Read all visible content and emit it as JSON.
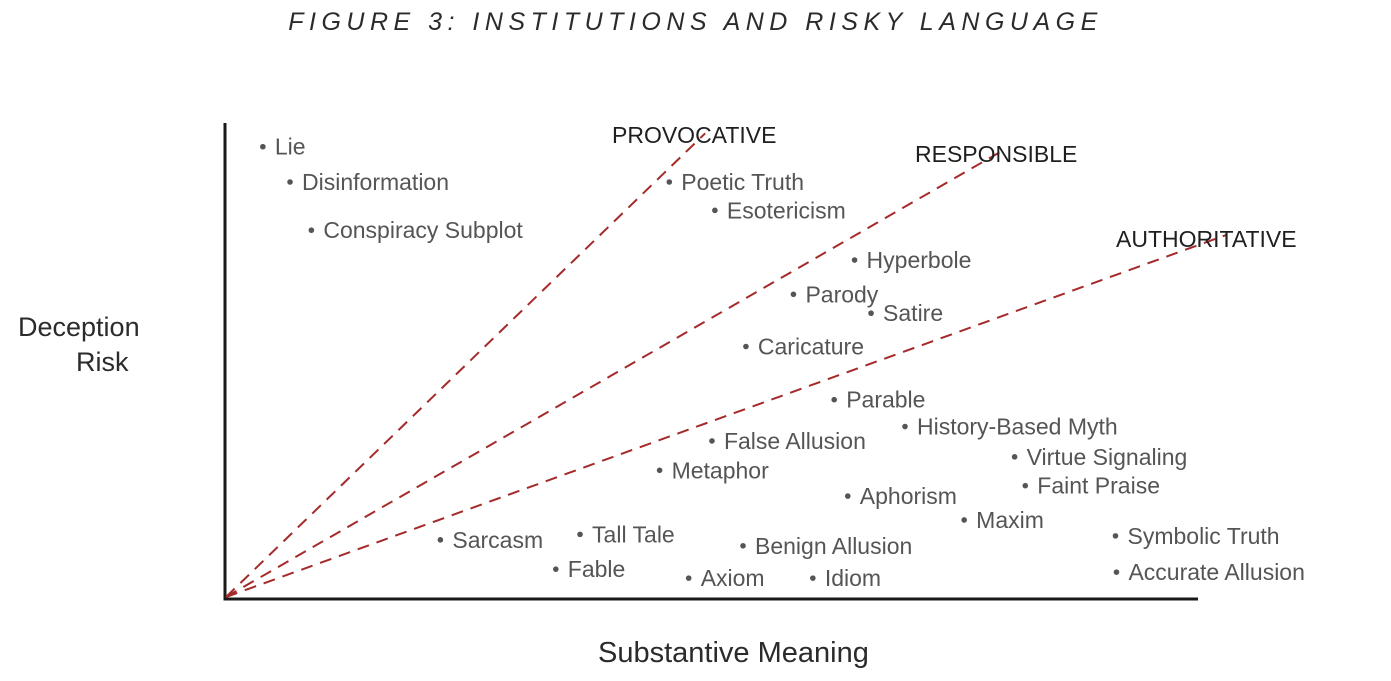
{
  "chart_data": {
    "type": "scatter",
    "title": "FIGURE 3: INSTITUTIONS AND RISKY LANGUAGE",
    "xlabel": "Substantive Meaning",
    "ylabel": [
      "Deception",
      "Risk"
    ],
    "xlim": [
      0,
      100
    ],
    "ylim": [
      0,
      100
    ],
    "grid": false,
    "line_color": "#a52a2a",
    "point_color": "#555555",
    "reference_lines": [
      {
        "name": "PROVOCATIVE",
        "from": [
          0,
          0
        ],
        "to": [
          49.4,
          93.3
        ]
      },
      {
        "name": "RESPONSIBLE",
        "from": [
          0,
          0
        ],
        "to": [
          80.4,
          90.2
        ]
      },
      {
        "name": "AUTHORITATIVE",
        "from": [
          0,
          0
        ],
        "to": [
          103.2,
          72.9
        ]
      }
    ],
    "points": [
      {
        "label": "Lie",
        "x": 3.8,
        "y": 90.6
      },
      {
        "label": "Disinformation",
        "x": 6.6,
        "y": 83.5
      },
      {
        "label": "Conspiracy Subplot",
        "x": 8.8,
        "y": 73.8
      },
      {
        "label": "Poetic Truth",
        "x": 45.7,
        "y": 83.5
      },
      {
        "label": "Esotericism",
        "x": 50.4,
        "y": 77.8
      },
      {
        "label": "Hyperbole",
        "x": 64.8,
        "y": 67.8
      },
      {
        "label": "Parody",
        "x": 58.5,
        "y": 60.9
      },
      {
        "label": "Satire",
        "x": 66.5,
        "y": 57.1
      },
      {
        "label": "Caricature",
        "x": 53.6,
        "y": 50.4
      },
      {
        "label": "Parable",
        "x": 62.7,
        "y": 39.7
      },
      {
        "label": "History-Based Myth",
        "x": 70.0,
        "y": 34.3
      },
      {
        "label": "False Allusion",
        "x": 50.1,
        "y": 31.4
      },
      {
        "label": "Virtue Signaling",
        "x": 81.3,
        "y": 28.2
      },
      {
        "label": "Metaphor",
        "x": 44.7,
        "y": 25.5
      },
      {
        "label": "Faint Praise",
        "x": 82.4,
        "y": 22.4
      },
      {
        "label": "Aphorism",
        "x": 64.1,
        "y": 20.3
      },
      {
        "label": "Maxim",
        "x": 76.1,
        "y": 15.5
      },
      {
        "label": "Sarcasm",
        "x": 22.1,
        "y": 11.5
      },
      {
        "label": "Tall Tale",
        "x": 36.5,
        "y": 12.6
      },
      {
        "label": "Benign Allusion",
        "x": 53.3,
        "y": 10.3
      },
      {
        "label": "Symbolic Truth",
        "x": 91.7,
        "y": 12.3
      },
      {
        "label": "Fable",
        "x": 34.0,
        "y": 5.6
      },
      {
        "label": "Axiom",
        "x": 47.7,
        "y": 3.8
      },
      {
        "label": "Idiom",
        "x": 60.5,
        "y": 3.8
      },
      {
        "label": "Accurate Allusion",
        "x": 91.8,
        "y": 5.0
      }
    ]
  }
}
